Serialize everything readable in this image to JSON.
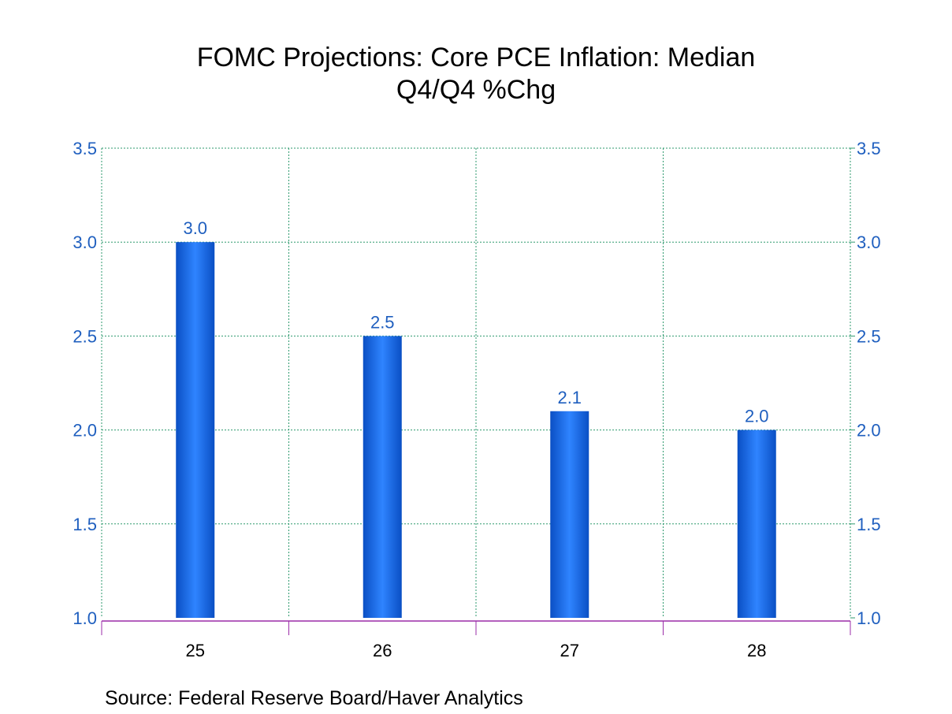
{
  "chart_data": {
    "type": "bar",
    "title": "FOMC Projections: Core PCE Inflation: Median",
    "subtitle": "Q4/Q4 %Chg",
    "categories": [
      "25",
      "26",
      "27",
      "28"
    ],
    "values": [
      3.0,
      2.5,
      2.1,
      2.0
    ],
    "value_labels": [
      "3.0",
      "2.5",
      "2.1",
      "2.0"
    ],
    "ylim": [
      1.0,
      3.5
    ],
    "yticks": [
      1.0,
      1.5,
      2.0,
      2.5,
      3.0,
      3.5
    ],
    "ytick_labels": [
      "1.0",
      "1.5",
      "2.0",
      "2.5",
      "3.0",
      "3.5"
    ],
    "xlabel": "",
    "ylabel": "",
    "grid": true,
    "legend": "none"
  },
  "source": "Source:  Federal Reserve Board/Haver Analytics",
  "colors": {
    "bar_dark": "#0a4fc4",
    "bar_light": "#2f84ff",
    "axis_text": "#1f5fbf",
    "grid": "#2e9a6e",
    "x_axis": "#9b2ca8",
    "category_text": "#000000"
  }
}
